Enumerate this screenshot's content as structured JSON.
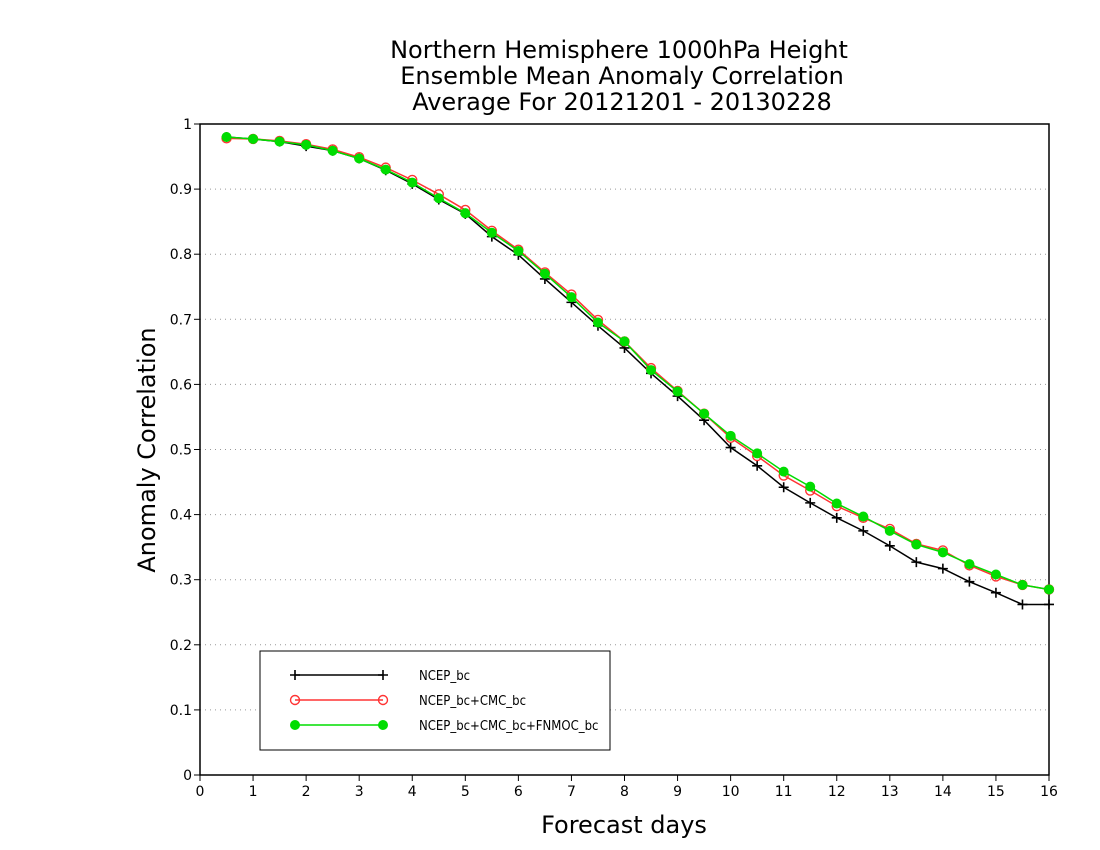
{
  "chart_data": {
    "type": "line",
    "title": [
      "Northern Hemisphere 1000hPa Height",
      "Ensemble Mean Anomaly Correlation",
      "Average For 20121201 - 20130228"
    ],
    "xlabel": "Forecast days",
    "ylabel": "Anomaly Correlation",
    "xlim": [
      0,
      16
    ],
    "ylim": [
      0,
      1
    ],
    "xticks": [
      "0",
      "1",
      "2",
      "3",
      "4",
      "5",
      "6",
      "7",
      "8",
      "9",
      "10",
      "11",
      "12",
      "13",
      "14",
      "15",
      "16"
    ],
    "yticks": [
      "0",
      "0.1",
      "0.2",
      "0.3",
      "0.4",
      "0.5",
      "0.6",
      "0.7",
      "0.8",
      "0.9",
      "1"
    ],
    "grid": "horizontal dotted",
    "legend_position": "lower-left",
    "x": [
      0.5,
      1,
      1.5,
      2,
      2.5,
      3,
      3.5,
      4,
      4.5,
      5,
      5.5,
      6,
      6.5,
      7,
      7.5,
      8,
      8.5,
      9,
      9.5,
      10,
      10.5,
      11,
      11.5,
      12,
      12.5,
      13,
      13.5,
      14,
      14.5,
      15,
      15.5,
      16
    ],
    "series": [
      {
        "name": "NCEP_bc",
        "color": "#000000",
        "marker": "plus",
        "values": [
          0.98,
          0.977,
          0.973,
          0.966,
          0.959,
          0.947,
          0.929,
          0.908,
          0.884,
          0.862,
          0.827,
          0.799,
          0.762,
          0.726,
          0.69,
          0.656,
          0.617,
          0.582,
          0.545,
          0.503,
          0.475,
          0.442,
          0.418,
          0.395,
          0.375,
          0.352,
          0.327,
          0.317,
          0.297,
          0.28,
          0.262,
          0.262
        ]
      },
      {
        "name": "NCEP_bc+CMC_bc",
        "color": "#ff3333",
        "marker": "open-circle",
        "values": [
          0.978,
          0.977,
          0.974,
          0.969,
          0.961,
          0.949,
          0.933,
          0.914,
          0.892,
          0.868,
          0.836,
          0.807,
          0.772,
          0.738,
          0.699,
          0.666,
          0.625,
          0.59,
          0.555,
          0.518,
          0.49,
          0.46,
          0.437,
          0.413,
          0.395,
          0.378,
          0.355,
          0.345,
          0.322,
          0.305,
          0.292,
          0.285
        ]
      },
      {
        "name": "NCEP_bc+CMC_bc+FNMOC_bc",
        "color": "#00dd00",
        "marker": "filled-circle",
        "values": [
          0.98,
          0.977,
          0.973,
          0.968,
          0.959,
          0.947,
          0.93,
          0.91,
          0.886,
          0.863,
          0.833,
          0.805,
          0.77,
          0.734,
          0.695,
          0.666,
          0.622,
          0.589,
          0.555,
          0.521,
          0.494,
          0.466,
          0.443,
          0.417,
          0.397,
          0.375,
          0.354,
          0.342,
          0.324,
          0.308,
          0.292,
          0.285
        ]
      }
    ]
  }
}
